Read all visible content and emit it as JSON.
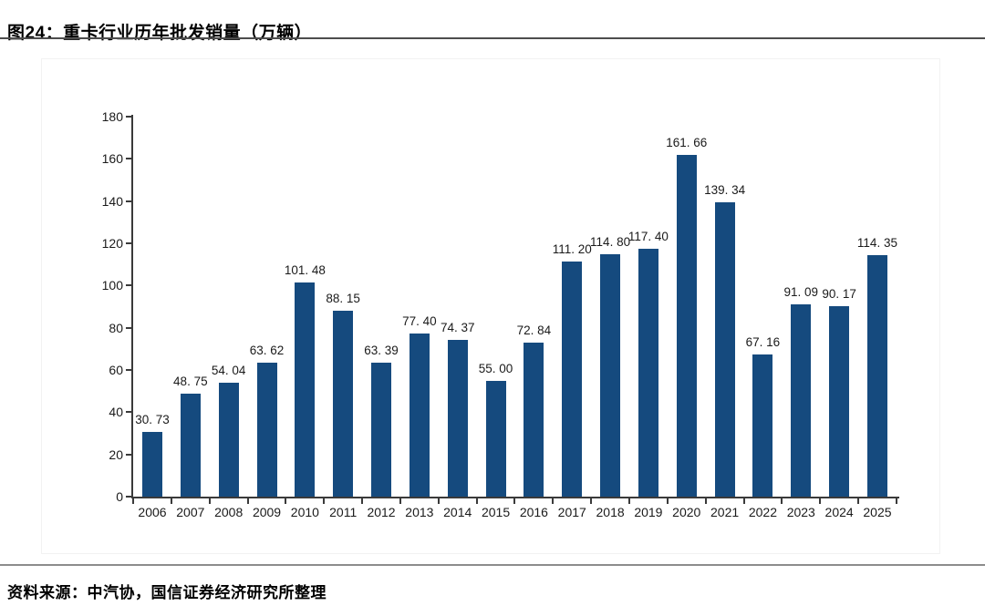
{
  "header": {
    "title": "图24：重卡行业历年批发销量（万辆）"
  },
  "footer": {
    "source": "资料来源：中汽协，国信证券经济研究所整理"
  },
  "chart_data": {
    "type": "bar",
    "title": "重卡行业历年批发销量（万辆）",
    "xlabel": "",
    "ylabel": "",
    "categories": [
      "2006",
      "2007",
      "2008",
      "2009",
      "2010",
      "2011",
      "2012",
      "2013",
      "2014",
      "2015",
      "2016",
      "2017",
      "2018",
      "2019",
      "2020",
      "2021",
      "2022",
      "2023",
      "2024",
      "2025"
    ],
    "values": [
      30.73,
      48.75,
      54.04,
      63.62,
      101.48,
      88.15,
      63.39,
      77.4,
      74.37,
      55.0,
      72.84,
      111.2,
      114.8,
      117.4,
      161.66,
      139.34,
      67.16,
      91.09,
      90.17,
      114.35
    ],
    "value_labels": [
      "30. 73",
      "48. 75",
      "54. 04",
      "63. 62",
      "101. 48",
      "88. 15",
      "63. 39",
      "77. 40",
      "74. 37",
      "55. 00",
      "72. 84",
      "111. 20",
      "114. 80",
      "117. 40",
      "161. 66",
      "139. 34",
      "67. 16",
      "91. 09",
      "90. 17",
      "114. 35"
    ],
    "ylim": [
      0,
      180
    ],
    "ytick_step": 20,
    "ytick_labels": [
      "0",
      "20",
      "40",
      "60",
      "80",
      "100",
      "120",
      "140",
      "160",
      "180"
    ],
    "grid": false,
    "legend_position": "none",
    "bar_color": "#154A7E",
    "axis_color": "#3a3a3a",
    "label_color": "#1a1a1a"
  }
}
